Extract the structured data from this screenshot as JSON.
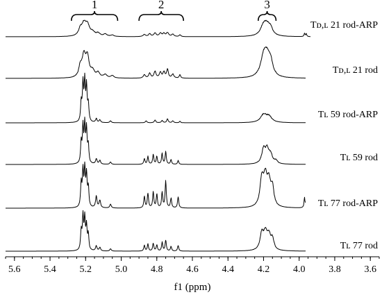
{
  "chart_data": {
    "type": "line",
    "title": "",
    "xlabel": "f1 (ppm)",
    "ylabel": "",
    "x_reversed": true,
    "xlim": [
      5.65,
      3.55
    ],
    "x_ticks": [
      {
        "value": 5.6,
        "label": "5.6"
      },
      {
        "value": 5.4,
        "label": "5.4"
      },
      {
        "value": 5.2,
        "label": "5.2"
      },
      {
        "value": 5.0,
        "label": "5.0"
      },
      {
        "value": 4.8,
        "label": "4.8"
      },
      {
        "value": 4.6,
        "label": "4.6"
      },
      {
        "value": 4.4,
        "label": "4.4"
      },
      {
        "value": 4.2,
        "label": "4.2"
      },
      {
        "value": 4.0,
        "label": "4.0"
      },
      {
        "value": 3.8,
        "label": "3.8"
      },
      {
        "value": 3.6,
        "label": "3.6"
      }
    ],
    "regions": [
      {
        "label": "1",
        "from": 5.28,
        "to": 5.02
      },
      {
        "label": "2",
        "from": 4.9,
        "to": 4.65
      },
      {
        "label": "3",
        "from": 4.23,
        "to": 4.13
      }
    ],
    "series": [
      {
        "name": "Tᴅ,ʟ 21 rod-ARP",
        "peaks": [
          {
            "ppm": 5.21,
            "h": 0.38,
            "w": 0.014
          },
          {
            "ppm": 5.19,
            "h": 0.36,
            "w": 0.014
          },
          {
            "ppm": 5.23,
            "h": 0.22,
            "w": 0.012
          },
          {
            "ppm": 5.16,
            "h": 0.12,
            "w": 0.014
          },
          {
            "ppm": 5.13,
            "h": 0.1,
            "w": 0.012
          },
          {
            "ppm": 5.09,
            "h": 0.08,
            "w": 0.012
          },
          {
            "ppm": 5.05,
            "h": 0.05,
            "w": 0.01
          },
          {
            "ppm": 4.87,
            "h": 0.07,
            "w": 0.008
          },
          {
            "ppm": 4.84,
            "h": 0.09,
            "w": 0.008
          },
          {
            "ppm": 4.81,
            "h": 0.12,
            "w": 0.008
          },
          {
            "ppm": 4.78,
            "h": 0.11,
            "w": 0.008
          },
          {
            "ppm": 4.76,
            "h": 0.1,
            "w": 0.008
          },
          {
            "ppm": 4.74,
            "h": 0.13,
            "w": 0.008
          },
          {
            "ppm": 4.71,
            "h": 0.08,
            "w": 0.008
          },
          {
            "ppm": 4.67,
            "h": 0.06,
            "w": 0.006
          },
          {
            "ppm": 4.2,
            "h": 0.34,
            "w": 0.02
          },
          {
            "ppm": 4.18,
            "h": 0.3,
            "w": 0.02
          },
          {
            "ppm": 4.16,
            "h": 0.2,
            "w": 0.015
          },
          {
            "ppm": 3.97,
            "h": 0.12,
            "w": 0.003
          },
          {
            "ppm": 3.96,
            "h": 0.1,
            "w": 0.003
          }
        ]
      },
      {
        "name": "Tᴅ,ʟ 21 rod",
        "peaks": [
          {
            "ppm": 5.21,
            "h": 0.6,
            "w": 0.012
          },
          {
            "ppm": 5.19,
            "h": 0.58,
            "w": 0.012
          },
          {
            "ppm": 5.23,
            "h": 0.3,
            "w": 0.01
          },
          {
            "ppm": 5.16,
            "h": 0.18,
            "w": 0.012
          },
          {
            "ppm": 5.13,
            "h": 0.14,
            "w": 0.012
          },
          {
            "ppm": 5.09,
            "h": 0.1,
            "w": 0.012
          },
          {
            "ppm": 5.05,
            "h": 0.07,
            "w": 0.01
          },
          {
            "ppm": 4.87,
            "h": 0.1,
            "w": 0.007
          },
          {
            "ppm": 4.84,
            "h": 0.14,
            "w": 0.007
          },
          {
            "ppm": 4.81,
            "h": 0.2,
            "w": 0.007
          },
          {
            "ppm": 4.78,
            "h": 0.16,
            "w": 0.007
          },
          {
            "ppm": 4.76,
            "h": 0.18,
            "w": 0.007
          },
          {
            "ppm": 4.74,
            "h": 0.25,
            "w": 0.006
          },
          {
            "ppm": 4.71,
            "h": 0.12,
            "w": 0.007
          },
          {
            "ppm": 4.67,
            "h": 0.1,
            "w": 0.005
          },
          {
            "ppm": 4.2,
            "h": 0.55,
            "w": 0.02
          },
          {
            "ppm": 4.18,
            "h": 0.52,
            "w": 0.02
          },
          {
            "ppm": 4.16,
            "h": 0.35,
            "w": 0.015
          }
        ]
      },
      {
        "name": "Tʟ 59 rod-ARP",
        "peaks": [
          {
            "ppm": 5.215,
            "h": 0.95,
            "w": 0.004
          },
          {
            "ppm": 5.205,
            "h": 1.0,
            "w": 0.004
          },
          {
            "ppm": 5.195,
            "h": 0.9,
            "w": 0.004
          },
          {
            "ppm": 5.225,
            "h": 0.5,
            "w": 0.004
          },
          {
            "ppm": 5.185,
            "h": 0.45,
            "w": 0.004
          },
          {
            "ppm": 5.14,
            "h": 0.1,
            "w": 0.005
          },
          {
            "ppm": 5.12,
            "h": 0.07,
            "w": 0.005
          },
          {
            "ppm": 5.06,
            "h": 0.05,
            "w": 0.005
          },
          {
            "ppm": 4.86,
            "h": 0.05,
            "w": 0.005
          },
          {
            "ppm": 4.81,
            "h": 0.07,
            "w": 0.005
          },
          {
            "ppm": 4.77,
            "h": 0.06,
            "w": 0.005
          },
          {
            "ppm": 4.74,
            "h": 0.1,
            "w": 0.005
          },
          {
            "ppm": 4.71,
            "h": 0.05,
            "w": 0.005
          },
          {
            "ppm": 4.67,
            "h": 0.04,
            "w": 0.004
          },
          {
            "ppm": 4.2,
            "h": 0.2,
            "w": 0.02
          },
          {
            "ppm": 4.17,
            "h": 0.15,
            "w": 0.02
          },
          {
            "ppm": 3.95,
            "h": 0.04,
            "w": 0.004
          }
        ]
      },
      {
        "name": "Tʟ 59 rod",
        "peaks": [
          {
            "ppm": 5.215,
            "h": 0.9,
            "w": 0.004
          },
          {
            "ppm": 5.205,
            "h": 0.95,
            "w": 0.004
          },
          {
            "ppm": 5.195,
            "h": 0.85,
            "w": 0.004
          },
          {
            "ppm": 5.225,
            "h": 0.55,
            "w": 0.004
          },
          {
            "ppm": 5.185,
            "h": 0.45,
            "w": 0.004
          },
          {
            "ppm": 5.14,
            "h": 0.14,
            "w": 0.005
          },
          {
            "ppm": 5.12,
            "h": 0.1,
            "w": 0.005
          },
          {
            "ppm": 5.06,
            "h": 0.06,
            "w": 0.005
          },
          {
            "ppm": 4.87,
            "h": 0.15,
            "w": 0.004
          },
          {
            "ppm": 4.85,
            "h": 0.2,
            "w": 0.004
          },
          {
            "ppm": 4.82,
            "h": 0.25,
            "w": 0.004
          },
          {
            "ppm": 4.8,
            "h": 0.2,
            "w": 0.004
          },
          {
            "ppm": 4.77,
            "h": 0.28,
            "w": 0.004
          },
          {
            "ppm": 4.75,
            "h": 0.33,
            "w": 0.004
          },
          {
            "ppm": 4.72,
            "h": 0.12,
            "w": 0.004
          },
          {
            "ppm": 4.68,
            "h": 0.1,
            "w": 0.004
          },
          {
            "ppm": 4.2,
            "h": 0.38,
            "w": 0.012
          },
          {
            "ppm": 4.18,
            "h": 0.34,
            "w": 0.012
          },
          {
            "ppm": 4.16,
            "h": 0.22,
            "w": 0.012
          },
          {
            "ppm": 4.13,
            "h": 0.08,
            "w": 0.01
          }
        ]
      },
      {
        "name": "Tʟ 77 rod-ARP",
        "peaks": [
          {
            "ppm": 5.215,
            "h": 0.9,
            "w": 0.004
          },
          {
            "ppm": 5.205,
            "h": 0.95,
            "w": 0.004
          },
          {
            "ppm": 5.195,
            "h": 0.8,
            "w": 0.004
          },
          {
            "ppm": 5.225,
            "h": 0.6,
            "w": 0.004
          },
          {
            "ppm": 5.185,
            "h": 0.5,
            "w": 0.004
          },
          {
            "ppm": 5.14,
            "h": 0.3,
            "w": 0.005
          },
          {
            "ppm": 5.12,
            "h": 0.2,
            "w": 0.005
          },
          {
            "ppm": 5.06,
            "h": 0.1,
            "w": 0.005
          },
          {
            "ppm": 4.87,
            "h": 0.3,
            "w": 0.004
          },
          {
            "ppm": 4.85,
            "h": 0.38,
            "w": 0.004
          },
          {
            "ppm": 4.82,
            "h": 0.42,
            "w": 0.004
          },
          {
            "ppm": 4.8,
            "h": 0.35,
            "w": 0.004
          },
          {
            "ppm": 4.77,
            "h": 0.4,
            "w": 0.004
          },
          {
            "ppm": 4.75,
            "h": 0.7,
            "w": 0.004
          },
          {
            "ppm": 4.72,
            "h": 0.25,
            "w": 0.004
          },
          {
            "ppm": 4.68,
            "h": 0.3,
            "w": 0.004
          },
          {
            "ppm": 4.21,
            "h": 0.7,
            "w": 0.012
          },
          {
            "ppm": 4.19,
            "h": 0.68,
            "w": 0.012
          },
          {
            "ppm": 4.17,
            "h": 0.6,
            "w": 0.012
          },
          {
            "ppm": 4.15,
            "h": 0.45,
            "w": 0.01
          },
          {
            "ppm": 3.97,
            "h": 0.26,
            "w": 0.003
          },
          {
            "ppm": 3.96,
            "h": 0.24,
            "w": 0.003
          },
          {
            "ppm": 3.95,
            "h": 0.18,
            "w": 0.003
          }
        ]
      },
      {
        "name": "Tʟ 77 rod",
        "peaks": [
          {
            "ppm": 5.215,
            "h": 0.85,
            "w": 0.004
          },
          {
            "ppm": 5.205,
            "h": 0.8,
            "w": 0.004
          },
          {
            "ppm": 5.195,
            "h": 0.6,
            "w": 0.004
          },
          {
            "ppm": 5.225,
            "h": 0.5,
            "w": 0.004
          },
          {
            "ppm": 5.185,
            "h": 0.4,
            "w": 0.004
          },
          {
            "ppm": 5.14,
            "h": 0.13,
            "w": 0.005
          },
          {
            "ppm": 5.12,
            "h": 0.09,
            "w": 0.005
          },
          {
            "ppm": 5.06,
            "h": 0.06,
            "w": 0.005
          },
          {
            "ppm": 4.87,
            "h": 0.15,
            "w": 0.004
          },
          {
            "ppm": 4.85,
            "h": 0.18,
            "w": 0.004
          },
          {
            "ppm": 4.82,
            "h": 0.2,
            "w": 0.004
          },
          {
            "ppm": 4.8,
            "h": 0.16,
            "w": 0.004
          },
          {
            "ppm": 4.77,
            "h": 0.22,
            "w": 0.004
          },
          {
            "ppm": 4.75,
            "h": 0.28,
            "w": 0.004
          },
          {
            "ppm": 4.72,
            "h": 0.12,
            "w": 0.004
          },
          {
            "ppm": 4.68,
            "h": 0.15,
            "w": 0.004
          },
          {
            "ppm": 4.21,
            "h": 0.42,
            "w": 0.012
          },
          {
            "ppm": 4.19,
            "h": 0.4,
            "w": 0.012
          },
          {
            "ppm": 4.17,
            "h": 0.36,
            "w": 0.012
          },
          {
            "ppm": 4.15,
            "h": 0.28,
            "w": 0.01
          }
        ]
      }
    ]
  }
}
